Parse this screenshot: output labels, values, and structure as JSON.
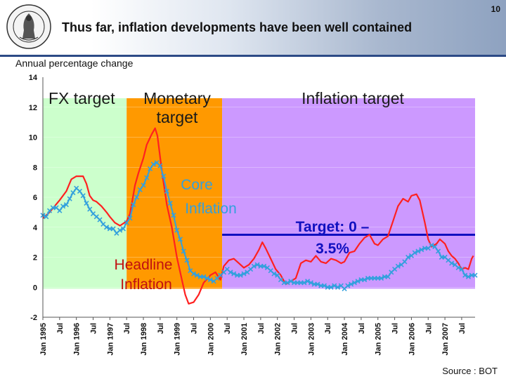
{
  "page_number": "10",
  "title": "Thus far, inflation developments have been well contained",
  "subtitle": "Annual percentage change",
  "source": "Source : BOT",
  "logo": {
    "name": "bank-seal",
    "text": "BANK OF THAILAND"
  },
  "colors": {
    "fx_band": "#ccffcc",
    "monetary_band": "#ff9900",
    "inflation_band": "#cc99ff",
    "headline": "#ff2020",
    "core": "#33a0dd",
    "target": "#1010c0",
    "header_rule": "#2c4a86"
  },
  "chart_data": {
    "type": "line",
    "title": "",
    "xlabel": "",
    "ylabel": "Annual percentage change",
    "ylim": [
      -2,
      14
    ],
    "yticks": [
      -2,
      0,
      2,
      4,
      6,
      8,
      10,
      12,
      14
    ],
    "x_start": 1995.0,
    "x_end": 2007.9,
    "x_tick_labels": [
      "Jan 1995",
      "Jul",
      "Jan 1996",
      "Jul",
      "Jan 1997",
      "Jul",
      "Jan 1998",
      "Jul",
      "Jan 1999",
      "Jul",
      "Jan 2000",
      "Jul",
      "Jan 2001",
      "Jul",
      "Jan 2002",
      "Jul",
      "Jan 2003",
      "Jul",
      "Jan 2004",
      "Jul",
      "Jan 2005",
      "Jul",
      "Jan 2006",
      "Jul",
      "Jan 2007",
      "Jul"
    ],
    "regimes": [
      {
        "name": "fx_target",
        "label": "FX target",
        "x_from": 1995.0,
        "x_to": 1997.5
      },
      {
        "name": "monetary_target",
        "label": "Monetary target",
        "x_from": 1997.5,
        "x_to": 2000.35
      },
      {
        "name": "inflation_target",
        "label": "Inflation target",
        "x_from": 2000.35,
        "x_to": 2007.9
      }
    ],
    "target_band": {
      "label": "Target: 0 – 3.5%",
      "x_from": 2000.35,
      "x_to": 2007.9,
      "value": 3.5
    },
    "annotations": [
      {
        "name": "core-inflation-label",
        "text": "Core Inflation",
        "x": 1999.45,
        "y": 5.4
      },
      {
        "name": "headline-inflation-label",
        "text": "Headline Inflation",
        "x": 1998.45,
        "y": 0.9
      }
    ],
    "series": [
      {
        "name": "Headline Inflation",
        "points": [
          [
            1995.0,
            4.6
          ],
          [
            1995.2,
            5.0
          ],
          [
            1995.35,
            5.4
          ],
          [
            1995.5,
            5.8
          ],
          [
            1995.7,
            6.4
          ],
          [
            1995.85,
            7.2
          ],
          [
            1996.0,
            7.4
          ],
          [
            1996.2,
            7.4
          ],
          [
            1996.3,
            6.9
          ],
          [
            1996.4,
            6.1
          ],
          [
            1996.5,
            5.8
          ],
          [
            1996.6,
            5.7
          ],
          [
            1996.75,
            5.4
          ],
          [
            1996.9,
            5.0
          ],
          [
            1997.0,
            4.7
          ],
          [
            1997.15,
            4.3
          ],
          [
            1997.3,
            4.1
          ],
          [
            1997.5,
            4.4
          ],
          [
            1997.6,
            4.9
          ],
          [
            1997.75,
            6.8
          ],
          [
            1997.85,
            7.6
          ],
          [
            1998.0,
            8.6
          ],
          [
            1998.1,
            9.5
          ],
          [
            1998.25,
            10.2
          ],
          [
            1998.35,
            10.6
          ],
          [
            1998.42,
            10.1
          ],
          [
            1998.55,
            7.8
          ],
          [
            1998.7,
            5.5
          ],
          [
            1998.85,
            4.0
          ],
          [
            1999.0,
            2.0
          ],
          [
            1999.15,
            0.5
          ],
          [
            1999.25,
            -0.5
          ],
          [
            1999.35,
            -1.1
          ],
          [
            1999.5,
            -1.0
          ],
          [
            1999.65,
            -0.5
          ],
          [
            1999.8,
            0.3
          ],
          [
            2000.0,
            0.8
          ],
          [
            2000.15,
            1.0
          ],
          [
            2000.3,
            0.5
          ],
          [
            2000.4,
            1.4
          ],
          [
            2000.55,
            1.8
          ],
          [
            2000.7,
            1.9
          ],
          [
            2000.85,
            1.6
          ],
          [
            2001.0,
            1.3
          ],
          [
            2001.15,
            1.5
          ],
          [
            2001.3,
            1.9
          ],
          [
            2001.45,
            2.5
          ],
          [
            2001.55,
            3.0
          ],
          [
            2001.65,
            2.6
          ],
          [
            2001.8,
            1.9
          ],
          [
            2001.95,
            1.2
          ],
          [
            2002.1,
            0.8
          ],
          [
            2002.25,
            0.2
          ],
          [
            2002.4,
            0.4
          ],
          [
            2002.55,
            0.6
          ],
          [
            2002.7,
            1.6
          ],
          [
            2002.85,
            1.8
          ],
          [
            2003.0,
            1.7
          ],
          [
            2003.15,
            2.1
          ],
          [
            2003.3,
            1.7
          ],
          [
            2003.45,
            1.6
          ],
          [
            2003.6,
            1.9
          ],
          [
            2003.75,
            1.8
          ],
          [
            2003.9,
            1.6
          ],
          [
            2004.0,
            1.7
          ],
          [
            2004.15,
            2.3
          ],
          [
            2004.3,
            2.4
          ],
          [
            2004.45,
            2.9
          ],
          [
            2004.6,
            3.3
          ],
          [
            2004.75,
            3.5
          ],
          [
            2004.9,
            2.9
          ],
          [
            2005.0,
            2.8
          ],
          [
            2005.15,
            3.2
          ],
          [
            2005.3,
            3.4
          ],
          [
            2005.45,
            4.4
          ],
          [
            2005.6,
            5.4
          ],
          [
            2005.75,
            5.9
          ],
          [
            2005.9,
            5.7
          ],
          [
            2006.0,
            6.1
          ],
          [
            2006.15,
            6.2
          ],
          [
            2006.25,
            5.8
          ],
          [
            2006.4,
            4.3
          ],
          [
            2006.5,
            3.2
          ],
          [
            2006.6,
            2.7
          ],
          [
            2006.75,
            2.9
          ],
          [
            2006.85,
            3.2
          ],
          [
            2007.0,
            2.9
          ],
          [
            2007.1,
            2.4
          ],
          [
            2007.2,
            2.1
          ],
          [
            2007.3,
            1.9
          ],
          [
            2007.4,
            1.6
          ],
          [
            2007.5,
            1.2
          ],
          [
            2007.6,
            1.3
          ],
          [
            2007.7,
            1.2
          ],
          [
            2007.8,
            1.9
          ],
          [
            2007.85,
            2.1
          ]
        ]
      },
      {
        "name": "Core Inflation",
        "points": [
          [
            1995.0,
            4.8
          ],
          [
            1995.1,
            4.7
          ],
          [
            1995.2,
            5.1
          ],
          [
            1995.3,
            5.3
          ],
          [
            1995.4,
            5.3
          ],
          [
            1995.5,
            5.1
          ],
          [
            1995.6,
            5.4
          ],
          [
            1995.7,
            5.5
          ],
          [
            1995.8,
            5.9
          ],
          [
            1995.9,
            6.3
          ],
          [
            1996.0,
            6.6
          ],
          [
            1996.1,
            6.4
          ],
          [
            1996.2,
            6.1
          ],
          [
            1996.3,
            5.6
          ],
          [
            1996.4,
            5.2
          ],
          [
            1996.5,
            4.9
          ],
          [
            1996.6,
            4.7
          ],
          [
            1996.7,
            4.5
          ],
          [
            1996.8,
            4.2
          ],
          [
            1996.9,
            4.0
          ],
          [
            1997.0,
            3.9
          ],
          [
            1997.1,
            3.9
          ],
          [
            1997.2,
            3.6
          ],
          [
            1997.3,
            3.8
          ],
          [
            1997.4,
            3.9
          ],
          [
            1997.5,
            4.3
          ],
          [
            1997.6,
            4.6
          ],
          [
            1997.7,
            5.5
          ],
          [
            1997.8,
            6.0
          ],
          [
            1997.9,
            6.5
          ],
          [
            1998.0,
            6.8
          ],
          [
            1998.1,
            7.3
          ],
          [
            1998.2,
            7.9
          ],
          [
            1998.3,
            8.2
          ],
          [
            1998.4,
            8.3
          ],
          [
            1998.5,
            8.1
          ],
          [
            1998.6,
            7.4
          ],
          [
            1998.7,
            6.4
          ],
          [
            1998.8,
            5.6
          ],
          [
            1998.9,
            4.8
          ],
          [
            1999.0,
            3.8
          ],
          [
            1999.1,
            3.2
          ],
          [
            1999.2,
            2.4
          ],
          [
            1999.3,
            1.8
          ],
          [
            1999.4,
            1.1
          ],
          [
            1999.5,
            0.9
          ],
          [
            1999.6,
            0.8
          ],
          [
            1999.7,
            0.7
          ],
          [
            1999.8,
            0.7
          ],
          [
            1999.9,
            0.6
          ],
          [
            2000.0,
            0.5
          ],
          [
            2000.1,
            0.4
          ],
          [
            2000.2,
            0.6
          ],
          [
            2000.3,
            0.8
          ],
          [
            2000.4,
            1.0
          ],
          [
            2000.5,
            1.2
          ],
          [
            2000.6,
            1.0
          ],
          [
            2000.7,
            0.9
          ],
          [
            2000.8,
            0.8
          ],
          [
            2000.9,
            0.8
          ],
          [
            2001.0,
            0.9
          ],
          [
            2001.1,
            1.0
          ],
          [
            2001.2,
            1.2
          ],
          [
            2001.3,
            1.4
          ],
          [
            2001.4,
            1.5
          ],
          [
            2001.5,
            1.4
          ],
          [
            2001.6,
            1.4
          ],
          [
            2001.7,
            1.3
          ],
          [
            2001.8,
            1.1
          ],
          [
            2001.9,
            0.9
          ],
          [
            2002.0,
            0.8
          ],
          [
            2002.1,
            0.5
          ],
          [
            2002.2,
            0.3
          ],
          [
            2002.3,
            0.3
          ],
          [
            2002.4,
            0.4
          ],
          [
            2002.5,
            0.3
          ],
          [
            2002.6,
            0.3
          ],
          [
            2002.7,
            0.3
          ],
          [
            2002.8,
            0.3
          ],
          [
            2002.9,
            0.4
          ],
          [
            2003.0,
            0.3
          ],
          [
            2003.1,
            0.2
          ],
          [
            2003.2,
            0.2
          ],
          [
            2003.3,
            0.1
          ],
          [
            2003.4,
            0.1
          ],
          [
            2003.5,
            0.0
          ],
          [
            2003.6,
            0.0
          ],
          [
            2003.7,
            0.1
          ],
          [
            2003.8,
            0.0
          ],
          [
            2003.9,
            0.1
          ],
          [
            2004.0,
            -0.1
          ],
          [
            2004.1,
            0.1
          ],
          [
            2004.2,
            0.2
          ],
          [
            2004.3,
            0.3
          ],
          [
            2004.4,
            0.4
          ],
          [
            2004.5,
            0.5
          ],
          [
            2004.6,
            0.5
          ],
          [
            2004.7,
            0.6
          ],
          [
            2004.8,
            0.6
          ],
          [
            2004.9,
            0.6
          ],
          [
            2005.0,
            0.6
          ],
          [
            2005.1,
            0.6
          ],
          [
            2005.2,
            0.7
          ],
          [
            2005.3,
            0.7
          ],
          [
            2005.4,
            1.0
          ],
          [
            2005.5,
            1.2
          ],
          [
            2005.6,
            1.4
          ],
          [
            2005.7,
            1.5
          ],
          [
            2005.8,
            1.7
          ],
          [
            2005.9,
            2.0
          ],
          [
            2006.0,
            2.1
          ],
          [
            2006.1,
            2.3
          ],
          [
            2006.2,
            2.4
          ],
          [
            2006.3,
            2.5
          ],
          [
            2006.4,
            2.6
          ],
          [
            2006.5,
            2.6
          ],
          [
            2006.6,
            2.8
          ],
          [
            2006.7,
            2.7
          ],
          [
            2006.8,
            2.4
          ],
          [
            2006.9,
            2.0
          ],
          [
            2007.0,
            2.0
          ],
          [
            2007.1,
            1.8
          ],
          [
            2007.2,
            1.6
          ],
          [
            2007.3,
            1.5
          ],
          [
            2007.4,
            1.3
          ],
          [
            2007.5,
            1.2
          ],
          [
            2007.6,
            0.8
          ],
          [
            2007.7,
            0.7
          ],
          [
            2007.8,
            0.8
          ],
          [
            2007.9,
            0.8
          ]
        ]
      }
    ]
  }
}
